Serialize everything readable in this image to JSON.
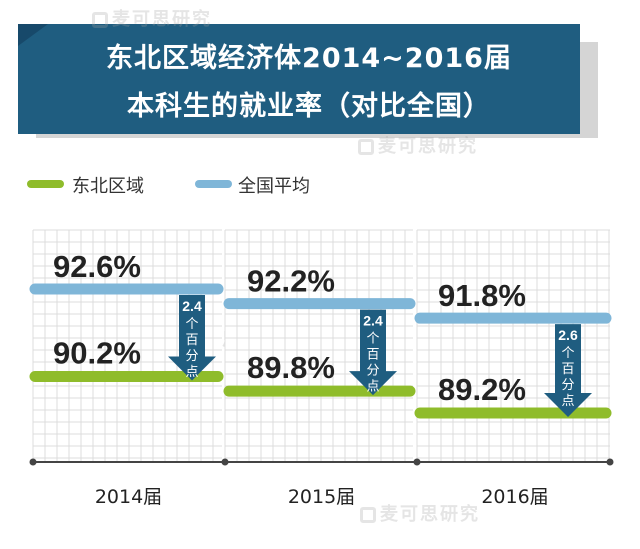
{
  "header": {
    "title_line_1": "东北区域经济体2014~2016届",
    "title_line_2": "本科生的就业率（对比全国）"
  },
  "watermark": "麦可思研究",
  "colors": {
    "banner": "#1f5d80",
    "banner_shadow": "#d5d5d5",
    "northeast": "#8fbc2b",
    "national": "#7fb6d8",
    "arrow": "#1f5d80",
    "grid": "#dcdcdc",
    "axis": "#444444"
  },
  "chart_data": {
    "type": "range-bar",
    "title": "东北区域经济体2014~2016届本科生的就业率（对比全国）",
    "unit": "%",
    "categories": [
      "2014届",
      "2015届",
      "2016届"
    ],
    "series": [
      {
        "name": "东北区域",
        "values": [
          90.2,
          89.8,
          89.2
        ]
      },
      {
        "name": "全国平均",
        "values": [
          92.6,
          92.2,
          91.8
        ]
      }
    ],
    "value_labels": {
      "northeast": [
        "90.2%",
        "89.8%",
        "89.2%"
      ],
      "national": [
        "92.6%",
        "92.2%",
        "91.8%"
      ]
    },
    "gap_labels": [
      {
        "value": "2.4",
        "unit_chars": [
          "个",
          "百",
          "分",
          "点"
        ]
      },
      {
        "value": "2.4",
        "unit_chars": [
          "个",
          "百",
          "分",
          "点"
        ]
      },
      {
        "value": "2.6",
        "unit_chars": [
          "个",
          "百",
          "分",
          "点"
        ]
      }
    ],
    "legend": [
      "东北区域",
      "全国平均"
    ],
    "legend_position": "top-left",
    "grid": true
  }
}
